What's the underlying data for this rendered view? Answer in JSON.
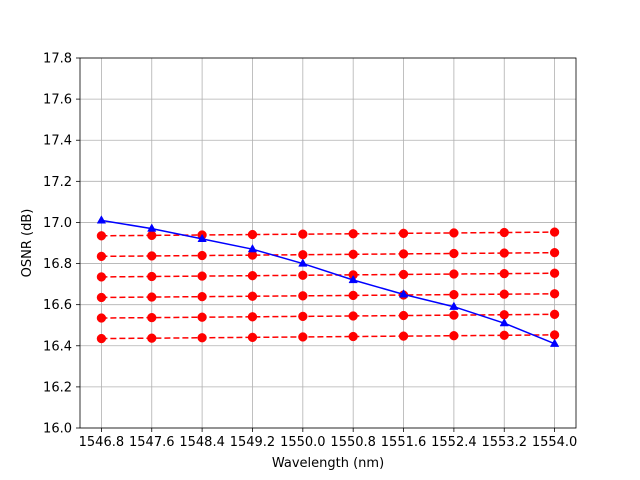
{
  "chart_data": {
    "type": "line",
    "title": "",
    "xlabel": "Wavelength (nm)",
    "ylabel": "OSNR (dB)",
    "x": [
      1546.8,
      1547.6,
      1548.4,
      1549.2,
      1550.0,
      1550.8,
      1551.6,
      1552.4,
      1553.2,
      1554.0
    ],
    "x_tick_labels": [
      "1546.8",
      "1547.6",
      "1548.4",
      "1549.2",
      "1550.0",
      "1550.8",
      "1551.6",
      "1552.4",
      "1553.2",
      "1554.0"
    ],
    "y_ticks": [
      "16.0",
      "16.2",
      "16.4",
      "16.6",
      "16.8",
      "17.0",
      "17.2",
      "17.4",
      "17.6",
      "17.8"
    ],
    "ylim": [
      16.0,
      17.8
    ],
    "xlim": [
      1546.46,
      1554.34
    ],
    "grid": true,
    "legend": "none",
    "series": [
      {
        "color": "#0000ff",
        "style": "solid",
        "marker": "triangle",
        "values": [
          17.01,
          16.97,
          16.92,
          16.87,
          16.8,
          16.72,
          16.65,
          16.59,
          16.51,
          16.41
        ]
      },
      {
        "color": "#ff0000",
        "style": "dashed",
        "marker": "circle",
        "values": [
          16.935,
          16.937,
          16.939,
          16.941,
          16.943,
          16.945,
          16.947,
          16.949,
          16.951,
          16.953
        ]
      },
      {
        "color": "#ff0000",
        "style": "dashed",
        "marker": "circle",
        "values": [
          16.835,
          16.837,
          16.839,
          16.841,
          16.843,
          16.845,
          16.847,
          16.849,
          16.851,
          16.853
        ]
      },
      {
        "color": "#ff0000",
        "style": "dashed",
        "marker": "circle",
        "values": [
          16.735,
          16.737,
          16.739,
          16.741,
          16.743,
          16.745,
          16.747,
          16.749,
          16.751,
          16.753
        ]
      },
      {
        "color": "#ff0000",
        "style": "dashed",
        "marker": "circle",
        "values": [
          16.635,
          16.637,
          16.639,
          16.641,
          16.643,
          16.645,
          16.647,
          16.649,
          16.651,
          16.653
        ]
      },
      {
        "color": "#ff0000",
        "style": "dashed",
        "marker": "circle",
        "values": [
          16.535,
          16.537,
          16.539,
          16.541,
          16.543,
          16.545,
          16.547,
          16.549,
          16.551,
          16.553
        ]
      },
      {
        "color": "#ff0000",
        "style": "dashed",
        "marker": "circle",
        "values": [
          16.435,
          16.437,
          16.439,
          16.441,
          16.443,
          16.445,
          16.447,
          16.449,
          16.451,
          16.453
        ]
      }
    ]
  }
}
